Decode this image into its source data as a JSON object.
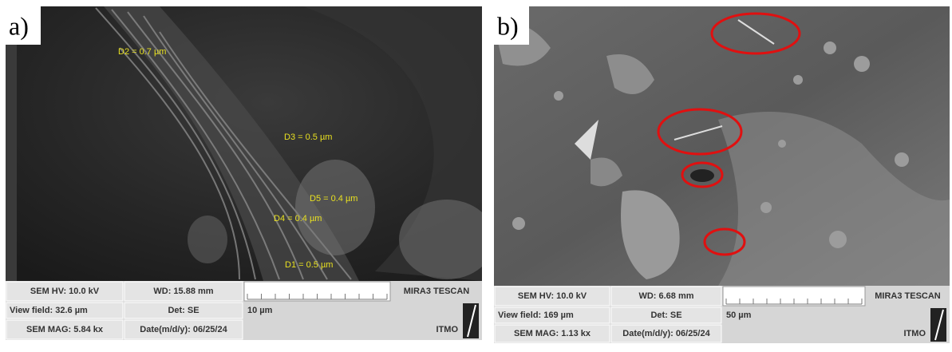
{
  "panels": [
    {
      "label": "a)",
      "measurements": [
        "D2 = 0.7 µm",
        "D3 = 0.5 µm",
        "D5 = 0.4 µm",
        "D4 = 0.4 µm",
        "D1 = 0.5 µm"
      ],
      "info": {
        "hv": "SEM HV: 10.0 kV",
        "wd": "WD: 15.88 mm",
        "brand": "MIRA3 TESCAN",
        "view_field": "View field: 32.6 µm",
        "det": "Det: SE",
        "scale": "10 µm",
        "mag": "SEM MAG: 5.84 kx",
        "date": "Date(m/d/y): 06/25/24",
        "org": "ITMO"
      }
    },
    {
      "label": "b)",
      "measurements": [],
      "info": {
        "hv": "SEM HV: 10.0 kV",
        "wd": "WD: 6.68 mm",
        "brand": "MIRA3 TESCAN",
        "view_field": "View field: 169 µm",
        "det": "Det: SE",
        "scale": "50 µm",
        "mag": "SEM MAG: 1.13 kx",
        "date": "Date(m/d/y): 06/25/24",
        "org": "ITMO"
      }
    }
  ]
}
